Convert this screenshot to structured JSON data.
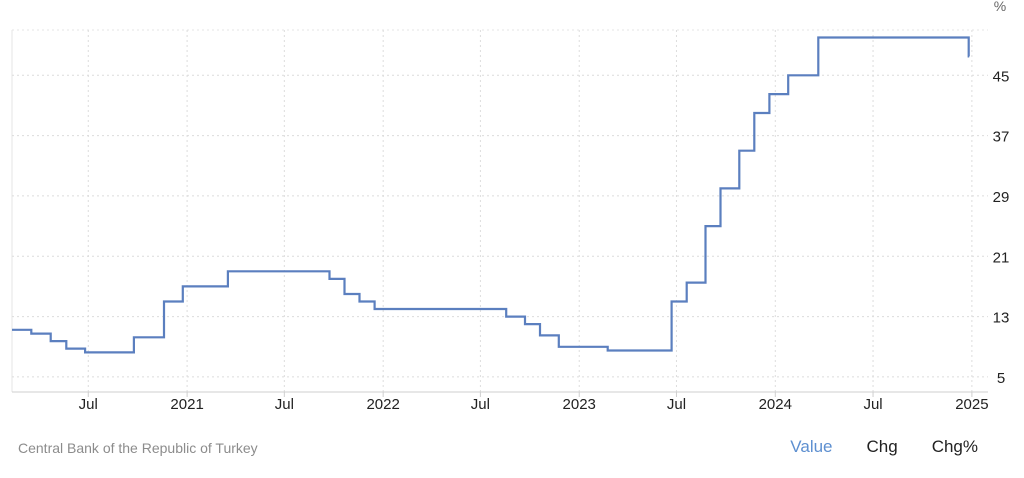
{
  "chart_data": {
    "type": "line",
    "step": true,
    "title": "",
    "xlabel": "",
    "ylabel": "%",
    "ylim": [
      3,
      51
    ],
    "xlim": [
      "2020-02-10",
      "2025-01-31"
    ],
    "y_ticks": [
      5,
      13,
      21,
      29,
      37,
      45
    ],
    "x_ticks": [
      {
        "date": "2020-07-01",
        "label": "Jul"
      },
      {
        "date": "2021-01-01",
        "label": "2021"
      },
      {
        "date": "2021-07-01",
        "label": "Jul"
      },
      {
        "date": "2022-01-01",
        "label": "2022"
      },
      {
        "date": "2022-07-01",
        "label": "Jul"
      },
      {
        "date": "2023-01-01",
        "label": "2023"
      },
      {
        "date": "2023-07-01",
        "label": "Jul"
      },
      {
        "date": "2024-01-01",
        "label": "2024"
      },
      {
        "date": "2024-07-01",
        "label": "Jul"
      },
      {
        "date": "2025-01-01",
        "label": "2025"
      }
    ],
    "grid": true,
    "series": [
      {
        "color": "#5b7fbf",
        "points": [
          {
            "x": "2020-02-10",
            "y": 11.25
          },
          {
            "x": "2020-03-17",
            "y": 10.75
          },
          {
            "x": "2020-04-22",
            "y": 9.75
          },
          {
            "x": "2020-05-21",
            "y": 8.75
          },
          {
            "x": "2020-06-25",
            "y": 8.25
          },
          {
            "x": "2020-09-24",
            "y": 10.25
          },
          {
            "x": "2020-11-19",
            "y": 15
          },
          {
            "x": "2020-12-24",
            "y": 17
          },
          {
            "x": "2021-03-18",
            "y": 19
          },
          {
            "x": "2021-09-23",
            "y": 18
          },
          {
            "x": "2021-10-21",
            "y": 16
          },
          {
            "x": "2021-11-18",
            "y": 15
          },
          {
            "x": "2021-12-16",
            "y": 14
          },
          {
            "x": "2022-08-18",
            "y": 13
          },
          {
            "x": "2022-09-22",
            "y": 12
          },
          {
            "x": "2022-10-20",
            "y": 10.5
          },
          {
            "x": "2022-11-24",
            "y": 9
          },
          {
            "x": "2023-02-23",
            "y": 8.5
          },
          {
            "x": "2023-06-22",
            "y": 15
          },
          {
            "x": "2023-07-20",
            "y": 17.5
          },
          {
            "x": "2023-08-24",
            "y": 25
          },
          {
            "x": "2023-09-21",
            "y": 30
          },
          {
            "x": "2023-10-26",
            "y": 35
          },
          {
            "x": "2023-11-23",
            "y": 40
          },
          {
            "x": "2023-12-21",
            "y": 42.5
          },
          {
            "x": "2024-01-25",
            "y": 45
          },
          {
            "x": "2024-03-21",
            "y": 50
          },
          {
            "x": "2024-12-26",
            "y": 47.5
          }
        ],
        "end_x": "2024-12-27"
      }
    ]
  },
  "footer": {
    "source": "Central Bank of the Republic of Turkey",
    "tabs": [
      "Value",
      "Chg",
      "Chg%"
    ],
    "active_tab": "Value"
  }
}
